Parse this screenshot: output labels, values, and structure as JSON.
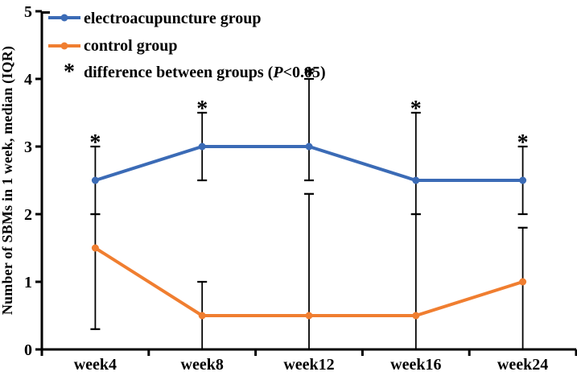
{
  "chart_data": {
    "type": "line",
    "title": "",
    "xlabel": "",
    "ylabel": "Number of SBMs in 1 week, median (IQR)",
    "categories": [
      "week4",
      "week8",
      "week12",
      "week16",
      "week24"
    ],
    "ylim": [
      0,
      5
    ],
    "yticks": [
      0,
      1,
      2,
      3,
      4,
      5
    ],
    "grid": false,
    "legend_position": "top-left",
    "error_bar_meaning": "IQR",
    "axis_color": "#000000",
    "series": [
      {
        "name": "electroacupuncture group",
        "color": "#3B6BB6",
        "values": [
          2.5,
          3,
          3,
          2.5,
          2.5
        ],
        "iqr_low": [
          2,
          2.5,
          2.5,
          2,
          2
        ],
        "iqr_high": [
          3,
          3.5,
          4,
          3.5,
          3
        ]
      },
      {
        "name": "control group",
        "color": "#F07E30",
        "values": [
          1.5,
          0.5,
          0.5,
          0.5,
          1
        ],
        "iqr_low": [
          0.3,
          0,
          0,
          0,
          0
        ],
        "iqr_high": [
          2,
          1,
          2.3,
          2,
          1.8
        ]
      }
    ],
    "significance": {
      "symbol": "*",
      "marked_categories": [
        "week4",
        "week8",
        "week12",
        "week16",
        "week24"
      ],
      "asterisk_above_values": [
        3,
        3.5,
        4,
        3.5,
        3
      ],
      "note_prefix": "difference between groups (",
      "note_p": "P",
      "note_suffix": "<0.05)"
    }
  }
}
